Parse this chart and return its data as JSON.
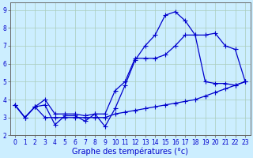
{
  "xlabel": "Graphe des températures (°c)",
  "bg_color": "#cceeff",
  "line_color": "#0000cc",
  "grid_color": "#aaccbb",
  "xlim": [
    -0.5,
    23.5
  ],
  "ylim": [
    2.0,
    9.4
  ],
  "xticks": [
    0,
    1,
    2,
    3,
    4,
    5,
    6,
    7,
    8,
    9,
    10,
    11,
    12,
    13,
    14,
    15,
    16,
    17,
    18,
    19,
    20,
    21,
    22,
    23
  ],
  "yticks": [
    2,
    3,
    4,
    5,
    6,
    7,
    8,
    9
  ],
  "series1_x": [
    0,
    1,
    2,
    3,
    4,
    5,
    6,
    7,
    8,
    9,
    10,
    11,
    12,
    13,
    14,
    15,
    16,
    17,
    18,
    19,
    20,
    21,
    22,
    23
  ],
  "series1_y": [
    3.7,
    3.0,
    3.6,
    3.0,
    3.0,
    3.0,
    3.0,
    3.0,
    3.0,
    3.0,
    3.2,
    3.3,
    3.4,
    3.5,
    3.6,
    3.7,
    3.8,
    3.9,
    4.0,
    4.2,
    4.4,
    4.6,
    4.8,
    5.0
  ],
  "series2_x": [
    0,
    1,
    2,
    3,
    4,
    5,
    6,
    7,
    8,
    9,
    10,
    11,
    12,
    13,
    14,
    15,
    16,
    17,
    18,
    19,
    20,
    21,
    22,
    23
  ],
  "series2_y": [
    3.7,
    3.0,
    3.6,
    3.7,
    2.6,
    3.1,
    3.1,
    2.8,
    3.2,
    2.5,
    3.5,
    4.8,
    6.2,
    7.0,
    7.6,
    8.7,
    8.9,
    8.4,
    7.6,
    7.6,
    7.7,
    7.0,
    6.8,
    5.0
  ],
  "series3_x": [
    0,
    1,
    2,
    3,
    4,
    5,
    6,
    7,
    8,
    9,
    10,
    11,
    12,
    13,
    14,
    15,
    16,
    17,
    18,
    19,
    20,
    21,
    22,
    23
  ],
  "series3_y": [
    3.7,
    3.0,
    3.6,
    4.0,
    3.2,
    3.2,
    3.2,
    3.1,
    3.2,
    3.2,
    4.5,
    5.0,
    6.3,
    6.3,
    6.3,
    6.5,
    7.0,
    7.6,
    7.6,
    5.0,
    4.9,
    4.9,
    4.8,
    5.0
  ],
  "marker": "+",
  "markersize": 4,
  "linewidth": 0.9,
  "tick_fontsize": 5.5,
  "xlabel_fontsize": 7
}
